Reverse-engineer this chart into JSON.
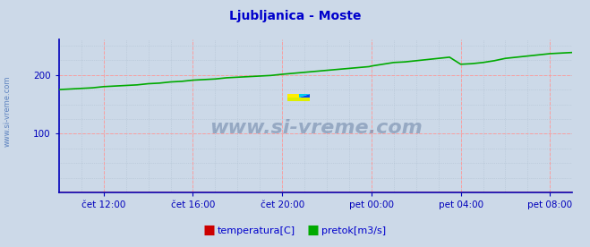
{
  "title": "Ljubljanica - Moste",
  "title_color": "#0000cc",
  "bg_color": "#ccd9e8",
  "plot_bg_color": "#ccd9e8",
  "axis_color": "#0000bb",
  "grid_color_major": "#ff9999",
  "grid_color_minor": "#aabbcc",
  "watermark_text": "www.si-vreme.com",
  "watermark_color": "#1a3a6e",
  "watermark_alpha": 0.3,
  "tick_color": "#0000bb",
  "x_tick_labels": [
    "čet 12:00",
    "čet 16:00",
    "čet 20:00",
    "pet 00:00",
    "pet 04:00",
    "pet 08:00"
  ],
  "x_tick_positions": [
    2,
    6,
    10,
    14,
    18,
    22
  ],
  "ylim": [
    0,
    260
  ],
  "yticks": [
    100,
    200
  ],
  "xlim": [
    0,
    23
  ],
  "pretok_color": "#00aa00",
  "temp_color": "#cc0000",
  "legend_labels": [
    "temperatura[C]",
    "pretok[m3/s]"
  ],
  "legend_colors": [
    "#cc0000",
    "#00aa00"
  ],
  "pretok_x": [
    0,
    0.5,
    1,
    1.5,
    2,
    2.5,
    3,
    3.5,
    4,
    4.5,
    5,
    5.5,
    6,
    6.5,
    7,
    7.5,
    8,
    8.5,
    9,
    9.5,
    10,
    10.3,
    10.6,
    10.9,
    11.2,
    11.5,
    11.8,
    12.1,
    12.4,
    12.7,
    13.0,
    13.3,
    13.6,
    13.9,
    14.0,
    14.5,
    15.0,
    15.5,
    16.0,
    16.5,
    17.0,
    17.5,
    18.0,
    18.5,
    19.0,
    19.5,
    20.0,
    20.5,
    21.0,
    21.5,
    22.0,
    22.5,
    23.0
  ],
  "pretok_y": [
    175,
    176,
    177,
    178,
    180,
    181,
    182,
    183,
    185,
    186,
    188,
    189,
    191,
    192,
    193,
    195,
    196,
    197,
    198,
    199,
    201,
    202,
    203,
    204,
    205,
    206,
    207,
    208,
    209,
    210,
    211,
    212,
    213,
    214,
    215,
    218,
    221,
    222,
    224,
    226,
    228,
    230,
    218,
    219,
    221,
    224,
    228,
    230,
    232,
    234,
    236,
    237,
    238
  ],
  "temp_y_val": 1.0,
  "side_label": "www.si-vreme.com"
}
